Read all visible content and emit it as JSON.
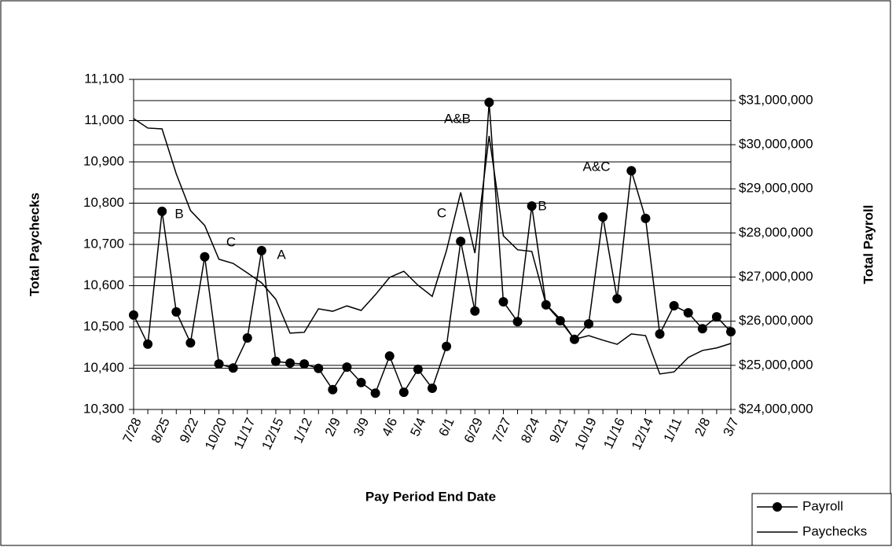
{
  "chart_data": {
    "type": "line",
    "x_label": "Pay Period End Date",
    "y_label": "Total Paychecks",
    "y2_label": "Total Payroll",
    "categories": [
      "7/28",
      null,
      "8/25",
      null,
      "9/22",
      null,
      "10/20",
      null,
      "11/17",
      null,
      "12/15",
      null,
      "1/12",
      null,
      "2/9",
      null,
      "3/9",
      null,
      "4/6",
      null,
      "5/4",
      null,
      "6/1",
      null,
      "6/29",
      null,
      "7/27",
      null,
      "8/24",
      null,
      "9/21",
      null,
      "10/19",
      null,
      "11/16",
      null,
      "12/14",
      null,
      "1/11",
      null,
      "2/8",
      null,
      "3/7"
    ],
    "series": [
      {
        "name": "Payroll",
        "color": "#000000",
        "axis": "y2",
        "marker": true,
        "values": [
          26140000,
          25480000,
          28490000,
          26210000,
          25510000,
          27460000,
          25030000,
          24940000,
          25620000,
          27600000,
          25090000,
          25050000,
          25030000,
          24930000,
          24450000,
          24960000,
          24610000,
          24370000,
          25210000,
          24390000,
          24910000,
          24480000,
          25430000,
          27810000,
          26230000,
          30960000,
          26440000,
          25990000,
          28610000,
          26370000,
          26010000,
          25590000,
          25940000,
          28360000,
          26510000,
          29410000,
          28330000,
          25710000,
          26350000,
          26190000,
          25830000,
          26100000,
          25760000
        ]
      },
      {
        "name": "Paychecks",
        "color": "#000000",
        "marker": false,
        "values": [
          11005,
          10982,
          10980,
          10871,
          10782,
          10746,
          10664,
          10654,
          10631,
          10607,
          10567,
          10485,
          10487,
          10544,
          10538,
          10551,
          10540,
          10578,
          10620,
          10635,
          10601,
          10574,
          10685,
          10826,
          10679,
          10963,
          10721,
          10687,
          10683,
          10555,
          10519,
          10470,
          10479,
          10468,
          10458,
          10483,
          10479,
          10386,
          10391,
          10426,
          10443,
          10449,
          10460
        ]
      }
    ],
    "ylim": [
      10300,
      11100
    ],
    "yticks": [
      {
        "value": 10300,
        "label": "10,300"
      },
      {
        "value": 10400,
        "label": "10,400"
      },
      {
        "value": 10500,
        "label": "10,500"
      },
      {
        "value": 10600,
        "label": "10,600"
      },
      {
        "value": 10700,
        "label": "10,700"
      },
      {
        "value": 10800,
        "label": "10,800"
      },
      {
        "value": 10900,
        "label": "10,900"
      },
      {
        "value": 11000,
        "label": "11,000"
      },
      {
        "value": 11100,
        "label": "11,100"
      }
    ],
    "y2lim": [
      24000000,
      31480000
    ],
    "y2ticks": [
      {
        "value": 24000000,
        "label": "$24,000,000"
      },
      {
        "value": 25000000,
        "label": "$25,000,000"
      },
      {
        "value": 26000000,
        "label": "$26,000,000"
      },
      {
        "value": 27000000,
        "label": "$27,000,000"
      },
      {
        "value": 28000000,
        "label": "$28,000,000"
      },
      {
        "value": 29000000,
        "label": "$29,000,000"
      },
      {
        "value": 30000000,
        "label": "$30,000,000"
      },
      {
        "value": 31000000,
        "label": "$31,000,000"
      }
    ],
    "grid": true,
    "legend": "lower right",
    "annotations": [
      "B",
      "C",
      "A",
      "C",
      "A&B",
      "B",
      "A&C"
    ]
  }
}
